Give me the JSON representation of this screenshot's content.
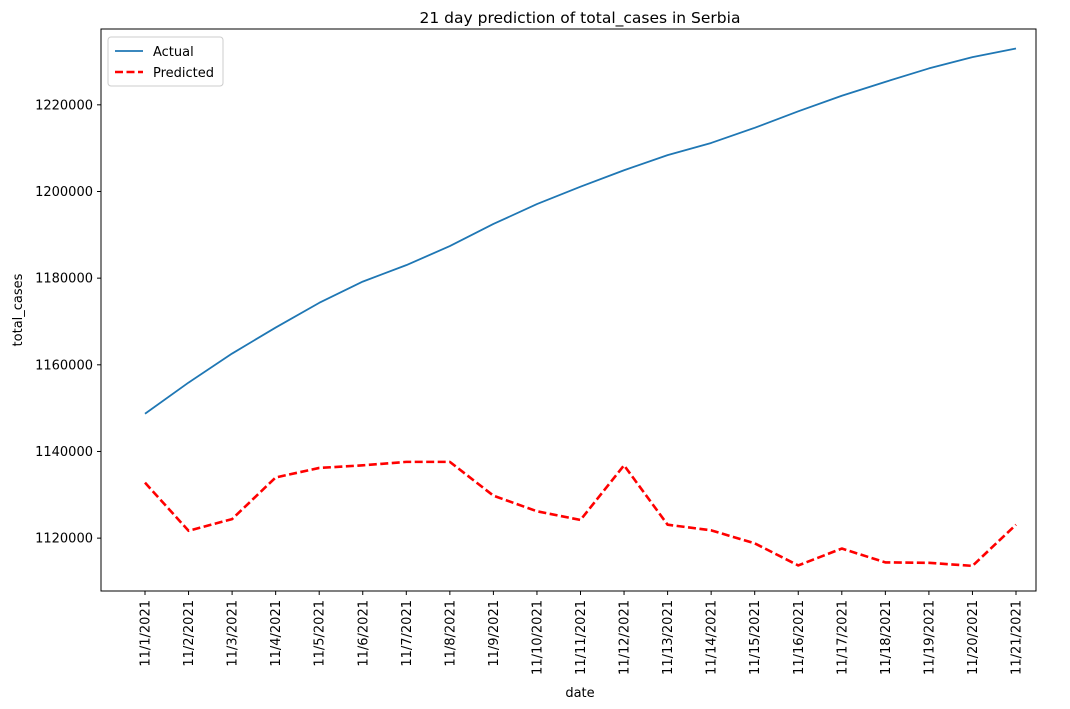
{
  "chart_data": {
    "type": "line",
    "title": "21 day prediction of total_cases in Serbia",
    "xlabel": "date",
    "ylabel": "total_cases",
    "categories": [
      "11/1/2021",
      "11/2/2021",
      "11/3/2021",
      "11/4/2021",
      "11/5/2021",
      "11/6/2021",
      "11/7/2021",
      "11/8/2021",
      "11/9/2021",
      "11/10/2021",
      "11/11/2021",
      "11/12/2021",
      "11/13/2021",
      "11/14/2021",
      "11/15/2021",
      "11/16/2021",
      "11/17/2021",
      "11/18/2021",
      "11/19/2021",
      "11/20/2021",
      "11/21/2021"
    ],
    "yticks": [
      1120000,
      1140000,
      1160000,
      1180000,
      1200000,
      1220000
    ],
    "ylim": [
      1107800,
      1237500
    ],
    "grid": false,
    "legend_position": "top-left",
    "series": [
      {
        "name": "Actual",
        "color": "#1f77b4",
        "style": "solid",
        "values": [
          1148700,
          1155900,
          1162600,
          1168600,
          1174300,
          1179200,
          1183000,
          1187400,
          1192500,
          1197100,
          1201100,
          1204900,
          1208400,
          1211200,
          1214700,
          1218500,
          1222100,
          1225300,
          1228400,
          1231000,
          1233000
        ]
      },
      {
        "name": "Predicted",
        "color": "#ff0000",
        "style": "dashed",
        "values": [
          1132800,
          1121700,
          1124400,
          1134000,
          1136200,
          1136800,
          1137600,
          1137600,
          1129800,
          1126200,
          1124200,
          1136800,
          1123100,
          1121800,
          1118800,
          1113700,
          1117600,
          1114400,
          1114300,
          1113600,
          1123100
        ]
      }
    ]
  }
}
